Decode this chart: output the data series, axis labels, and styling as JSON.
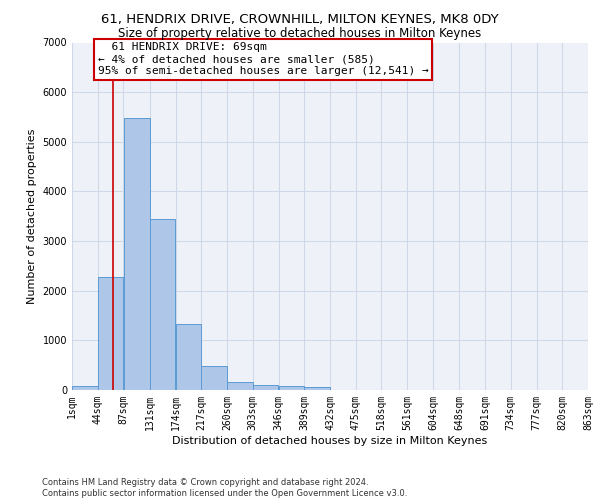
{
  "title": "61, HENDRIX DRIVE, CROWNHILL, MILTON KEYNES, MK8 0DY",
  "subtitle": "Size of property relative to detached houses in Milton Keynes",
  "xlabel": "Distribution of detached houses by size in Milton Keynes",
  "ylabel": "Number of detached properties",
  "footer": "Contains HM Land Registry data © Crown copyright and database right 2024.\nContains public sector information licensed under the Open Government Licence v3.0.",
  "annotation_line1": "61 HENDRIX DRIVE: 69sqm",
  "annotation_line2": "← 4% of detached houses are smaller (585)",
  "annotation_line3": "95% of semi-detached houses are larger (12,541) →",
  "property_size_sqm": 69,
  "bar_color": "#aec6e8",
  "bar_edge_color": "#5b9bd5",
  "red_line_color": "#cc0000",
  "annotation_box_edge_color": "#cc0000",
  "grid_color": "#d0d8e8",
  "bg_color": "#eef2f8",
  "bins": [
    1,
    44,
    87,
    131,
    174,
    217,
    260,
    303,
    346,
    389,
    432,
    475,
    518,
    561,
    604,
    648,
    691,
    734,
    777,
    820,
    863
  ],
  "counts": [
    75,
    2275,
    5475,
    3450,
    1325,
    475,
    165,
    100,
    75,
    55,
    0,
    0,
    0,
    0,
    0,
    0,
    0,
    0,
    0,
    0
  ],
  "ylim": [
    0,
    7000
  ],
  "yticks": [
    0,
    1000,
    2000,
    3000,
    4000,
    5000,
    6000,
    7000
  ],
  "title_fontsize": 9.5,
  "subtitle_fontsize": 8.5,
  "axis_label_fontsize": 8,
  "tick_fontsize": 7,
  "annotation_fontsize": 8,
  "footer_fontsize": 6
}
